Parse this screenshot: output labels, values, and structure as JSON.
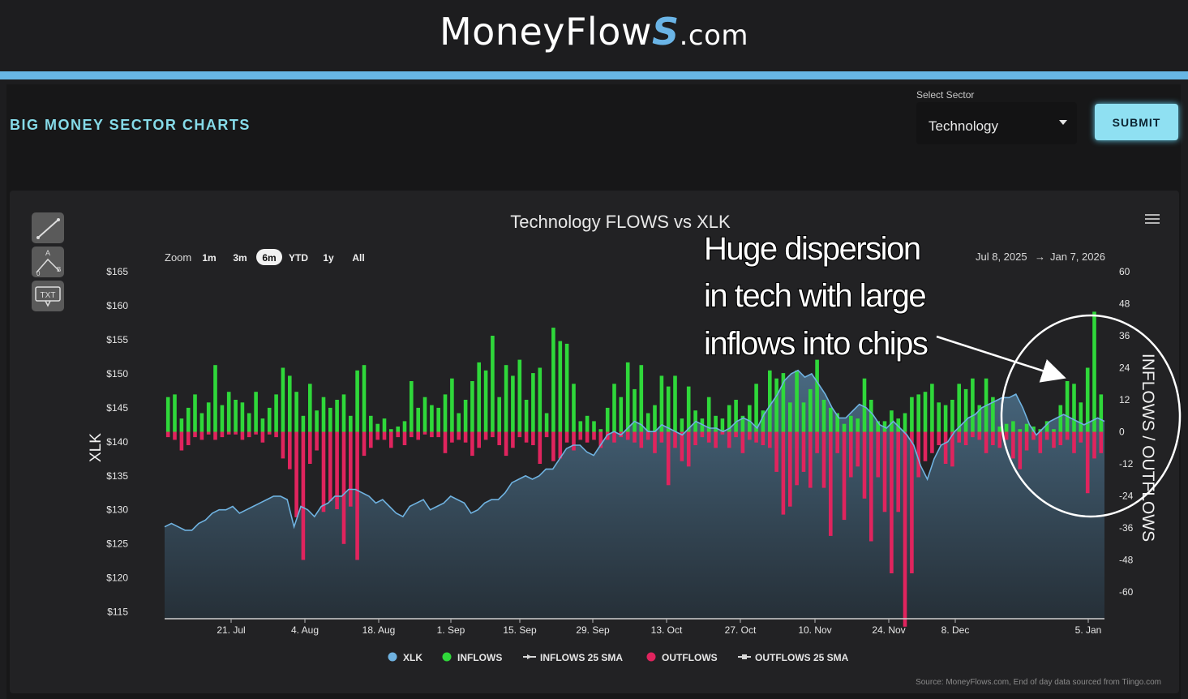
{
  "header": {
    "logo_main": "MoneyFlow",
    "logo_s": "S",
    "logo_tld": ".com"
  },
  "page": {
    "section_title": "BIG MONEY SECTOR CHARTS"
  },
  "sector_select": {
    "label": "Select Sector",
    "value": "Technology"
  },
  "submit": {
    "label": "SUBMIT"
  },
  "toolbar": {
    "tools": [
      "line-tool-icon",
      "triangle-abc-tool-icon",
      "text-annotation-tool-icon"
    ],
    "txt_label": "TXT"
  },
  "zoom": {
    "label": "Zoom",
    "options": [
      "1m",
      "3m",
      "6m",
      "YTD",
      "1y",
      "All"
    ],
    "selected": "6m"
  },
  "range": {
    "from": "Jul 8, 2025",
    "arrow": "→",
    "to": "Jan 7, 2026"
  },
  "annotation": {
    "lines": [
      "Huge dispersion",
      "in tech with large",
      "inflows into chips"
    ]
  },
  "source_note": "Source: MoneyFlows.com, End of day data sourced from Tiingo.com",
  "colors": {
    "xlk": "#6fb2e0",
    "inflows": "#2fd83a",
    "outflows": "#e0245e",
    "accent": "#86dbe9"
  },
  "chart_data": {
    "type": "bar",
    "title": "Technology FLOWS vs XLK",
    "ylabel_left": "XLK",
    "ylabel_right": "INFLOWS / OUTFLOWS",
    "ylim_left": [
      114,
      165
    ],
    "ylim_right": [
      -70,
      60
    ],
    "left_ticks": [
      "$165",
      "$160",
      "$155",
      "$150",
      "$145",
      "$140",
      "$135",
      "$130",
      "$125",
      "$120",
      "$115"
    ],
    "right_ticks": [
      "60",
      "48",
      "36",
      "24",
      "12",
      "0",
      "-12",
      "-24",
      "-36",
      "-48",
      "-60"
    ],
    "x_ticks": [
      "21. Jul",
      "4. Aug",
      "18. Aug",
      "1. Sep",
      "15. Sep",
      "29. Sep",
      "13. Oct",
      "27. Oct",
      "10. Nov",
      "24. Nov",
      "8. Dec",
      "5. Jan"
    ],
    "legend": [
      "XLK",
      "INFLOWS",
      "INFLOWS 25 SMA",
      "OUTFLOWS",
      "OUTFLOWS 25 SMA"
    ],
    "series": [
      {
        "name": "XLK",
        "type": "area",
        "values": [
          127.5,
          128,
          127.5,
          127,
          127,
          128,
          128.5,
          129.5,
          130,
          130,
          130.5,
          129.5,
          130,
          130.5,
          131,
          131.5,
          132,
          132,
          131.5,
          127.5,
          130.5,
          130,
          129,
          130.5,
          131,
          132,
          132,
          133,
          133,
          132.5,
          132,
          131,
          131.5,
          130.5,
          129.5,
          129,
          130.5,
          131,
          131.5,
          130,
          130.5,
          131,
          132,
          131.5,
          131,
          129.5,
          130,
          131,
          131.5,
          131.5,
          132.5,
          134,
          134.5,
          135,
          134.5,
          135,
          136,
          136,
          137.5,
          139,
          139.5,
          139.5,
          138.5,
          138,
          139.5,
          141,
          141.5,
          141,
          142,
          143,
          142.5,
          141.5,
          141.5,
          142.5,
          142,
          141.5,
          141,
          142,
          143,
          142.5,
          142,
          142,
          141.5,
          142,
          143,
          143.5,
          143,
          142,
          144,
          145.5,
          147,
          149,
          150,
          150.5,
          149.5,
          150,
          148.5,
          147,
          145,
          143.5,
          143.5,
          144.5,
          145.5,
          145,
          144,
          142.5,
          142,
          143,
          142,
          141,
          139.5,
          136.5,
          134.5,
          137.5,
          139.5,
          140,
          141.5,
          142.5,
          143.5,
          144,
          145,
          145.5,
          146,
          146.5,
          146.5,
          147,
          145,
          142.5,
          141,
          142,
          143,
          143.5,
          144,
          143.5,
          143,
          142.5,
          143,
          143.5,
          143
        ]
      },
      {
        "name": "INFLOWS",
        "values": [
          13,
          14,
          5,
          9,
          14,
          7,
          11,
          25,
          10,
          15,
          12,
          11,
          7,
          15,
          5,
          9,
          14,
          24,
          21,
          15,
          6,
          18,
          8,
          13,
          9,
          12,
          14,
          6,
          23,
          25,
          6,
          3,
          5,
          1,
          2,
          4,
          19,
          9,
          13,
          10,
          9,
          14,
          20,
          7,
          12,
          19,
          26,
          23,
          36,
          13,
          25,
          21,
          27,
          12,
          22,
          24,
          7,
          39,
          34,
          33,
          18,
          4,
          6,
          4,
          1,
          9,
          18,
          13,
          26,
          16,
          25,
          7,
          10,
          21,
          17,
          21,
          5,
          17,
          8,
          5,
          13,
          6,
          5,
          10,
          12,
          6,
          10,
          18,
          8,
          23,
          20,
          22,
          11,
          23,
          11,
          16,
          27,
          12,
          9,
          7,
          3,
          6,
          5,
          20,
          12,
          4,
          4,
          8,
          5,
          7,
          13,
          14,
          15,
          18,
          11,
          10,
          12,
          18,
          16,
          20,
          10,
          20,
          13,
          2,
          3,
          4,
          1,
          3,
          2,
          1,
          4,
          1,
          10,
          19,
          18,
          11,
          24,
          45,
          14
        ]
      },
      {
        "name": "OUTFLOWS",
        "values": [
          -2,
          -3,
          -7,
          -5,
          -2,
          -3,
          -1,
          -3,
          -2,
          -1,
          -1,
          -3,
          -2,
          -1,
          -4,
          -1,
          -2,
          -10,
          -14,
          -32,
          -48,
          -12,
          -7,
          -30,
          -26,
          -29,
          -42,
          -28,
          -48,
          -9,
          -6,
          -3,
          -3,
          -6,
          -2,
          -5,
          -2,
          -3,
          -1,
          -2,
          -2,
          -8,
          -4,
          -3,
          -4,
          -9,
          -6,
          -3,
          -2,
          -5,
          -9,
          -6,
          -2,
          -4,
          -5,
          -12,
          -2,
          -11,
          -10,
          -4,
          -7,
          -3,
          -4,
          -3,
          -6,
          -3,
          -4,
          -2,
          -3,
          -4,
          -6,
          -3,
          -8,
          -4,
          -20,
          -6,
          -11,
          -13,
          -5,
          -2,
          -4,
          -6,
          -1,
          -6,
          -2,
          -8,
          -3,
          -4,
          -5,
          -6,
          -15,
          -31,
          -28,
          -20,
          -15,
          -21,
          -8,
          -21,
          -39,
          -8,
          -33,
          -17,
          -13,
          -25,
          -41,
          -17,
          -30,
          -53,
          -30,
          -73,
          -53,
          -17,
          -11,
          -8,
          -5,
          -12,
          -13,
          -4,
          -5,
          -2,
          -3,
          -8,
          -5,
          -6,
          -3,
          -10,
          -14,
          -7,
          -3,
          -8,
          -3,
          -6,
          -5,
          -3,
          -8,
          -4,
          -23,
          -10,
          -8
        ]
      }
    ]
  }
}
